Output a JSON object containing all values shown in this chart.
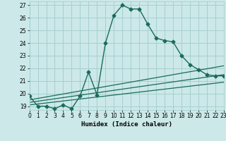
{
  "xlabel": "Humidex (Indice chaleur)",
  "xlim": [
    0,
    23
  ],
  "ylim": [
    18.7,
    27.3
  ],
  "xticks": [
    0,
    1,
    2,
    3,
    4,
    5,
    6,
    7,
    8,
    9,
    10,
    11,
    12,
    13,
    14,
    15,
    16,
    17,
    18,
    19,
    20,
    21,
    22,
    23
  ],
  "yticks": [
    19,
    20,
    21,
    22,
    23,
    24,
    25,
    26,
    27
  ],
  "bg_color": "#cce8e8",
  "grid_color": "#a0cccc",
  "line_color": "#1a6b5a",
  "series_main": {
    "x": [
      0,
      1,
      2,
      3,
      4,
      5,
      6,
      7,
      8,
      9,
      10,
      11,
      12,
      13,
      14,
      15,
      16,
      17,
      18,
      19,
      20,
      21,
      22,
      23
    ],
    "y": [
      19.8,
      19.0,
      19.0,
      18.8,
      19.1,
      18.8,
      19.8,
      21.7,
      19.9,
      24.0,
      26.2,
      27.0,
      26.7,
      26.7,
      25.5,
      24.4,
      24.2,
      24.1,
      23.0,
      22.3,
      21.9,
      21.5,
      21.4,
      21.4
    ]
  },
  "series_flat": [
    {
      "x": [
        0,
        23
      ],
      "y": [
        19.5,
        22.2
      ]
    },
    {
      "x": [
        0,
        23
      ],
      "y": [
        19.3,
        21.5
      ]
    },
    {
      "x": [
        0,
        23
      ],
      "y": [
        19.1,
        20.9
      ]
    }
  ]
}
